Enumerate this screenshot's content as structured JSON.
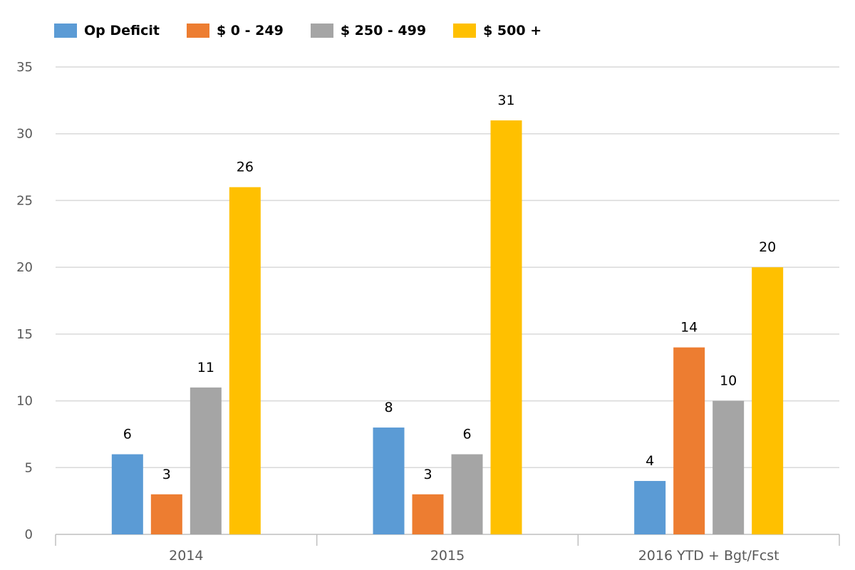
{
  "chart_data": {
    "type": "bar",
    "categories": [
      "2014",
      "2015",
      "2016 YTD + Bgt/Fcst"
    ],
    "series": [
      {
        "name": "Op Deficit",
        "color": "#5b9bd5",
        "values": [
          6,
          8,
          4
        ]
      },
      {
        "name": "$ 0 - 249",
        "color": "#ed7d31",
        "values": [
          3,
          3,
          14
        ]
      },
      {
        "name": "$ 250 - 499",
        "color": "#a5a5a5",
        "values": [
          11,
          6,
          10
        ]
      },
      {
        "name": "$ 500 +",
        "color": "#ffc000",
        "values": [
          26,
          31,
          20
        ]
      }
    ],
    "ylim": [
      0,
      35
    ],
    "yticks": [
      0,
      5,
      10,
      15,
      20,
      25,
      30,
      35
    ],
    "grid": true,
    "legend_position": "top-left",
    "data_labels": true
  }
}
